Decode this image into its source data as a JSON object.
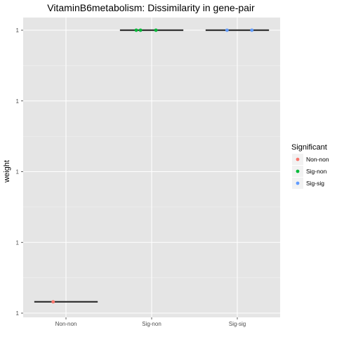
{
  "chart_data": {
    "type": "boxplot",
    "title": "VitaminB6metabolism: Dissimilarity in gene-pair",
    "xlabel": "",
    "ylabel": "weight",
    "ytick_labels": [
      "1",
      "1",
      "1",
      "1",
      "1"
    ],
    "categories": [
      "Non-non",
      "Sig-non",
      "Sig-sig"
    ],
    "legend": {
      "title": "Significant",
      "placement": "right",
      "entries": [
        {
          "label": "Non-non",
          "color": "#F8766D"
        },
        {
          "label": "Sig-non",
          "color": "#00BA38"
        },
        {
          "label": "Sig-sig",
          "color": "#619CFF"
        }
      ]
    },
    "y_range_fraction": [
      0,
      1
    ],
    "groups": [
      {
        "category": "Non-non",
        "median_fraction": 0.04,
        "points": [
          {
            "dx": -0.15,
            "y": 0.04
          }
        ]
      },
      {
        "category": "Sig-non",
        "median_fraction": 1.0,
        "points": [
          {
            "dx": -0.18,
            "y": 1.0
          },
          {
            "dx": -0.13,
            "y": 1.0
          },
          {
            "dx": 0.05,
            "y": 1.0
          }
        ]
      },
      {
        "category": "Sig-sig",
        "median_fraction": 1.0,
        "points": [
          {
            "dx": -0.12,
            "y": 1.0
          },
          {
            "dx": 0.17,
            "y": 1.0
          }
        ]
      }
    ],
    "grid": true,
    "colors": {
      "panel": "#E5E5E5",
      "grid_major": "#FFFFFF",
      "median_line": "#333333"
    }
  }
}
